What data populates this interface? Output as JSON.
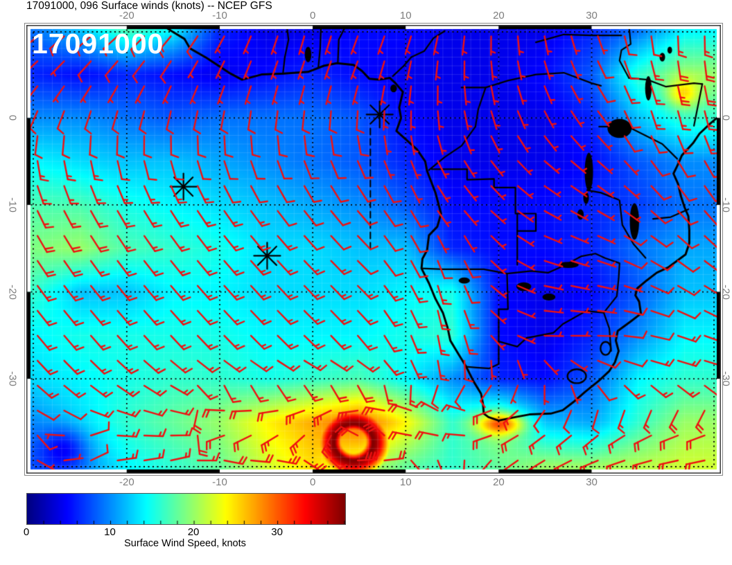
{
  "header": {
    "title": "17091000, 096 Surface winds (knots) -- NCEP GFS"
  },
  "map": {
    "timestamp_label": "17091000"
  },
  "axes": {
    "lon_tick_values": [
      -20,
      -10,
      0,
      10,
      20,
      30
    ],
    "lon_tick_labels": [
      "-20",
      "-10",
      "0",
      "10",
      "20",
      "30"
    ],
    "lat_tick_values": [
      0,
      -10,
      -20,
      -30
    ],
    "lat_tick_labels": [
      "0",
      "-10",
      "-20",
      "-30"
    ],
    "lon_range": [
      -30.8,
      43.9
    ],
    "lat_range": [
      10.7,
      -40.9
    ]
  },
  "colorbar": {
    "label": "Surface Wind Speed, knots",
    "tick_values": [
      0,
      10,
      20,
      30
    ],
    "tick_labels": [
      "0",
      "10",
      "20",
      "30"
    ],
    "min": 0,
    "max": 38,
    "colormap": "jet"
  },
  "chart_data": {
    "type": "heatmap",
    "title": "17091000, 096 Surface winds (knots) -- NCEP GFS",
    "valid_time": "17091000",
    "forecast_hour": "096",
    "model": "NCEP GFS",
    "variable": "Surface winds",
    "units": "knots",
    "lon_range": [
      -30.8,
      43.9
    ],
    "lat_range": [
      10.7,
      -40.9
    ],
    "speed_range": [
      0,
      38
    ],
    "grid": {
      "lons": [
        -30,
        -25,
        -20,
        -15,
        -10,
        -5,
        0,
        5,
        10,
        15,
        20,
        25,
        30,
        35,
        40
      ],
      "lats": [
        10,
        5,
        0,
        -5,
        -10,
        -15,
        -20,
        -25,
        -30,
        -35,
        -40
      ],
      "speed": [
        [
          9,
          12,
          17,
          14,
          6,
          4,
          4,
          5,
          5,
          4,
          4,
          4,
          6,
          9,
          14
        ],
        [
          6,
          5,
          6,
          5,
          4,
          5,
          6,
          5,
          4,
          4,
          4,
          5,
          8,
          16,
          20
        ],
        [
          10,
          10,
          9,
          8,
          9,
          9,
          9,
          8,
          5,
          4,
          4,
          4,
          6,
          12,
          16
        ],
        [
          14,
          13,
          12,
          12,
          11,
          10,
          9,
          8,
          6,
          4,
          4,
          4,
          5,
          8,
          10
        ],
        [
          17,
          17,
          15,
          14,
          13,
          12,
          11,
          10,
          8,
          5,
          5,
          5,
          6,
          7,
          9
        ],
        [
          19,
          20,
          17,
          16,
          15,
          13,
          13,
          12,
          12,
          6,
          5,
          5,
          6,
          9,
          11
        ],
        [
          16,
          12,
          12,
          14,
          14,
          13,
          13,
          13,
          14,
          15,
          5,
          4,
          5,
          8,
          12
        ],
        [
          14,
          15,
          15,
          15,
          15,
          14,
          14,
          14,
          15,
          16,
          5,
          4,
          6,
          10,
          14
        ],
        [
          13,
          14,
          15,
          16,
          16,
          15,
          16,
          17,
          14,
          10,
          6,
          5,
          8,
          14,
          16
        ],
        [
          10,
          13,
          16,
          18,
          20,
          24,
          27,
          30,
          24,
          16,
          20,
          12,
          11,
          16,
          20
        ],
        [
          8,
          10,
          14,
          16,
          18,
          22,
          25,
          22,
          18,
          16,
          18,
          20,
          20,
          21,
          22
        ]
      ],
      "dir_from": [
        [
          230,
          230,
          230,
          220,
          210,
          200,
          195,
          200,
          200,
          190,
          180,
          170,
          160,
          170,
          180
        ],
        [
          225,
          220,
          215,
          210,
          205,
          200,
          200,
          200,
          190,
          180,
          170,
          160,
          150,
          160,
          170
        ],
        [
          200,
          195,
          192,
          190,
          188,
          185,
          183,
          180,
          180,
          170,
          160,
          150,
          140,
          160,
          165
        ],
        [
          170,
          168,
          166,
          164,
          162,
          160,
          158,
          156,
          160,
          150,
          140,
          130,
          130,
          140,
          150
        ],
        [
          155,
          152,
          150,
          148,
          146,
          144,
          142,
          140,
          150,
          140,
          130,
          120,
          120,
          130,
          140
        ],
        [
          148,
          146,
          144,
          142,
          140,
          138,
          136,
          135,
          150,
          160,
          130,
          110,
          110,
          120,
          130
        ],
        [
          143,
          141,
          140,
          139,
          138,
          137,
          136,
          135,
          150,
          170,
          120,
          100,
          100,
          110,
          120
        ],
        [
          140,
          139,
          138,
          137,
          136,
          135,
          134,
          140,
          155,
          175,
          130,
          90,
          90,
          100,
          110
        ],
        [
          135,
          132,
          128,
          124,
          120,
          115,
          110,
          115,
          150,
          180,
          210,
          170,
          130,
          110,
          105
        ],
        [
          110,
          105,
          100,
          95,
          330,
          320,
          310,
          290,
          330,
          350,
          250,
          230,
          220,
          235,
          245
        ],
        [
          90,
          85,
          80,
          75,
          70,
          60,
          90,
          110,
          120,
          140,
          230,
          240,
          250,
          255,
          260
        ]
      ]
    },
    "features": {
      "storm": {
        "lon": 4.4,
        "lat": -37.3,
        "peak_knots": 38,
        "eye_knots": 6,
        "ring_radius_deg": 2.0,
        "ring_width_deg": 2.6,
        "influence_deg": 4.8
      },
      "weak_low": {
        "lon": -26.9,
        "lat": -38.2,
        "damp": 0.55,
        "radius_deg": 2.5,
        "influence_deg": 3.2
      },
      "bumps": [
        {
          "lon": 20.2,
          "lat": -35.2,
          "amp": 11,
          "sx": 2.4,
          "sy": 1.2
        },
        {
          "lon": 39.8,
          "lat": 2.8,
          "amp": 7,
          "sx": 1.8,
          "sy": 1.6
        }
      ]
    },
    "markers": [
      {
        "lon": 7.2,
        "lat": 0.4
      },
      {
        "lon": -13.9,
        "lat": -7.9
      },
      {
        "lon": -4.9,
        "lat": -15.85
      }
    ],
    "track": {
      "lon": 6.2,
      "lat_from": -1.2,
      "lat_to": -15.3,
      "style": "dashed"
    },
    "coastline": [
      [
        -16.2,
        10.7
      ],
      [
        -15.2,
        10.0
      ],
      [
        -13.8,
        9.1
      ],
      [
        -13.2,
        8.0
      ],
      [
        -11.4,
        6.9
      ],
      [
        -9.0,
        5.2
      ],
      [
        -7.6,
        4.4
      ],
      [
        -5.5,
        5.0
      ],
      [
        -3.1,
        5.1
      ],
      [
        -0.5,
        5.3
      ],
      [
        1.2,
        6.0
      ],
      [
        2.6,
        6.3
      ],
      [
        4.4,
        6.1
      ],
      [
        5.3,
        5.4
      ],
      [
        6.1,
        4.5
      ],
      [
        7.1,
        4.4
      ],
      [
        8.3,
        4.6
      ],
      [
        8.9,
        4.0
      ],
      [
        9.7,
        3.0
      ],
      [
        9.3,
        1.2
      ],
      [
        9.5,
        0.0
      ],
      [
        9.0,
        -1.5
      ],
      [
        11.2,
        -3.6
      ],
      [
        12.1,
        -5.0
      ],
      [
        12.3,
        -6.1
      ],
      [
        13.2,
        -8.6
      ],
      [
        13.8,
        -11.0
      ],
      [
        13.4,
        -12.5
      ],
      [
        12.5,
        -13.5
      ],
      [
        12.3,
        -15.2
      ],
      [
        11.8,
        -16.2
      ],
      [
        11.7,
        -17.3
      ],
      [
        12.5,
        -19.0
      ],
      [
        13.2,
        -20.8
      ],
      [
        14.0,
        -22.4
      ],
      [
        14.5,
        -24.1
      ],
      [
        14.8,
        -25.6
      ],
      [
        15.7,
        -27.2
      ],
      [
        16.5,
        -28.6
      ],
      [
        17.3,
        -30.3
      ],
      [
        18.1,
        -31.7
      ],
      [
        18.3,
        -32.8
      ],
      [
        18.4,
        -34.0
      ],
      [
        18.9,
        -34.4
      ],
      [
        20.0,
        -34.8
      ],
      [
        21.8,
        -34.4
      ],
      [
        23.3,
        -34.1
      ],
      [
        25.6,
        -34.0
      ],
      [
        26.9,
        -33.6
      ],
      [
        28.0,
        -32.7
      ],
      [
        29.3,
        -31.5
      ],
      [
        30.8,
        -30.2
      ],
      [
        31.9,
        -29.1
      ],
      [
        32.5,
        -28.1
      ],
      [
        32.9,
        -26.8
      ],
      [
        32.6,
        -25.6
      ],
      [
        32.8,
        -24.5
      ],
      [
        34.2,
        -23.4
      ],
      [
        35.3,
        -22.5
      ],
      [
        35.1,
        -21.1
      ],
      [
        34.7,
        -20.4
      ],
      [
        34.9,
        -19.6
      ],
      [
        35.9,
        -18.7
      ],
      [
        37.0,
        -17.8
      ],
      [
        38.2,
        -17.2
      ],
      [
        39.1,
        -16.5
      ],
      [
        40.1,
        -15.7
      ],
      [
        40.5,
        -14.4
      ],
      [
        40.5,
        -12.9
      ],
      [
        40.4,
        -11.3
      ],
      [
        40.0,
        -10.3
      ],
      [
        39.6,
        -9.0
      ],
      [
        39.3,
        -7.6
      ],
      [
        38.8,
        -6.4
      ],
      [
        39.3,
        -5.3
      ],
      [
        39.7,
        -4.3
      ],
      [
        40.9,
        -2.9
      ],
      [
        41.6,
        -1.8
      ],
      [
        42.8,
        -0.6
      ],
      [
        43.9,
        0.4
      ]
    ],
    "coast_segments": [
      [
        [
          42.6,
          10.7
        ],
        [
          43.9,
          10.2
        ]
      ]
    ],
    "islands": [
      {
        "lon": 8.7,
        "lat": 3.4,
        "rx": 0.35,
        "ry": 0.45
      }
    ],
    "borders": [
      [
        [
          11.7,
          -17.3
        ],
        [
          14.0,
          -17.4
        ],
        [
          18.4,
          -17.4
        ],
        [
          20.9,
          -17.9
        ],
        [
          23.5,
          -17.6
        ],
        [
          25.3,
          -17.8
        ]
      ],
      [
        [
          20.9,
          -17.9
        ],
        [
          21.0,
          -22.0
        ],
        [
          20.0,
          -22.0
        ],
        [
          20.0,
          -28.3
        ]
      ],
      [
        [
          20.0,
          -28.3
        ],
        [
          19.0,
          -28.8
        ],
        [
          17.6,
          -28.7
        ],
        [
          16.5,
          -28.6
        ]
      ],
      [
        [
          20.0,
          -25.7
        ],
        [
          22.0,
          -26.3
        ],
        [
          23.0,
          -25.3
        ],
        [
          25.9,
          -24.7
        ],
        [
          26.9,
          -23.7
        ],
        [
          27.9,
          -23.1
        ],
        [
          29.4,
          -22.2
        ],
        [
          31.3,
          -22.4
        ]
      ],
      [
        [
          31.3,
          -22.4
        ],
        [
          31.9,
          -24.2
        ],
        [
          32.0,
          -25.6
        ],
        [
          32.1,
          -26.8
        ]
      ],
      [
        [
          25.3,
          -17.8
        ],
        [
          27.0,
          -17.0
        ],
        [
          28.9,
          -15.9
        ],
        [
          30.4,
          -15.6
        ],
        [
          31.4,
          -16.1
        ],
        [
          33.0,
          -16.7
        ],
        [
          32.9,
          -18.5
        ],
        [
          32.7,
          -20.5
        ],
        [
          31.3,
          -22.4
        ]
      ],
      [
        [
          22.0,
          -11.0
        ],
        [
          22.0,
          -13.0
        ],
        [
          22.0,
          -16.9
        ]
      ],
      [
        [
          12.8,
          -5.9
        ],
        [
          16.6,
          -5.9
        ],
        [
          16.6,
          -7.1
        ],
        [
          19.5,
          -7.0
        ],
        [
          19.5,
          -8.0
        ],
        [
          21.8,
          -8.0
        ],
        [
          21.8,
          -11.0
        ],
        [
          24.0,
          -11.0
        ],
        [
          24.0,
          -13.0
        ],
        [
          22.0,
          -13.0
        ]
      ],
      [
        [
          12.5,
          -6.0
        ],
        [
          14.2,
          -4.5
        ],
        [
          16.0,
          -3.2
        ],
        [
          17.5,
          -1.0
        ],
        [
          17.8,
          1.0
        ],
        [
          18.6,
          3.5
        ]
      ],
      [
        [
          8.6,
          4.8
        ],
        [
          9.8,
          6.0
        ],
        [
          10.6,
          7.0
        ],
        [
          12.0,
          7.7
        ],
        [
          13.0,
          9.2
        ],
        [
          14.2,
          10.0
        ]
      ],
      [
        [
          16.0,
          3.5
        ],
        [
          18.6,
          3.5
        ],
        [
          21.0,
          4.3
        ],
        [
          24.0,
          5.0
        ],
        [
          27.0,
          5.2
        ],
        [
          30.0,
          4.0
        ],
        [
          31.0,
          3.7
        ]
      ],
      [
        [
          30.8,
          -1.0
        ],
        [
          33.9,
          -1.0
        ],
        [
          37.6,
          -3.0
        ],
        [
          39.2,
          -4.7
        ]
      ],
      [
        [
          40.4,
          -10.5
        ],
        [
          38.5,
          -11.4
        ],
        [
          36.6,
          -11.6
        ]
      ],
      [
        [
          34.0,
          4.6
        ],
        [
          36.0,
          4.4
        ],
        [
          38.0,
          3.6
        ],
        [
          41.0,
          4.0
        ],
        [
          41.9,
          3.9
        ]
      ],
      [
        [
          34.0,
          10.7
        ],
        [
          34.2,
          8.5
        ],
        [
          33.2,
          7.8
        ],
        [
          33.0,
          6.6
        ],
        [
          34.0,
          4.6
        ]
      ],
      [
        [
          24.0,
          8.7
        ],
        [
          27.0,
          9.6
        ],
        [
          30.0,
          9.5
        ],
        [
          33.2,
          9.5
        ]
      ],
      [
        [
          -3.2,
          5.1
        ],
        [
          -3.0,
          7.0
        ],
        [
          -2.6,
          9.0
        ],
        [
          -2.8,
          10.7
        ]
      ],
      [
        [
          0.6,
          5.8
        ],
        [
          0.8,
          8.0
        ],
        [
          0.9,
          10.7
        ]
      ],
      [
        [
          2.7,
          6.3
        ],
        [
          2.8,
          9.0
        ],
        [
          3.6,
          10.7
        ]
      ],
      [
        [
          41.9,
          3.9
        ],
        [
          41.0,
          -0.9
        ]
      ],
      [
        [
          33.0,
          -9.5
        ],
        [
          33.3,
          -12.3
        ],
        [
          34.5,
          -14.5
        ],
        [
          35.8,
          -16.1
        ]
      ],
      [
        [
          29.5,
          -8.3
        ],
        [
          31.0,
          -8.6
        ],
        [
          32.9,
          -9.4
        ]
      ]
    ],
    "enclaves": [
      {
        "lon": 28.4,
        "lat": -29.7,
        "rx": 1.0,
        "ry": 0.8
      },
      {
        "lon": 31.5,
        "lat": -26.5,
        "rx": 0.55,
        "ry": 0.75
      }
    ],
    "lakes": [
      {
        "lon": 33.0,
        "lat": -1.2,
        "rx": 1.3,
        "ry": 1.1
      },
      {
        "lon": 29.7,
        "lat": -6.2,
        "rx": 0.45,
        "ry": 2.2
      },
      {
        "lon": 34.6,
        "lat": -11.9,
        "rx": 0.5,
        "ry": 2.1
      },
      {
        "lon": 36.1,
        "lat": 3.4,
        "rx": 0.35,
        "ry": 1.4
      },
      {
        "lon": 29.4,
        "lat": -9.2,
        "rx": 0.3,
        "ry": 0.7
      },
      {
        "lon": 28.8,
        "lat": -11.1,
        "rx": 0.35,
        "ry": 0.6
      },
      {
        "lon": 27.5,
        "lat": -16.9,
        "rx": 1.1,
        "ry": 0.35
      },
      {
        "lon": 37.6,
        "lat": 7.0,
        "rx": 0.3,
        "ry": 0.5
      },
      {
        "lon": 38.4,
        "lat": 7.8,
        "rx": 0.25,
        "ry": 0.4
      },
      {
        "lon": -0.5,
        "lat": 7.3,
        "rx": 0.35,
        "ry": 0.9
      },
      {
        "lon": 22.7,
        "lat": -19.4,
        "rx": 0.8,
        "ry": 0.5
      },
      {
        "lon": 25.4,
        "lat": -20.6,
        "rx": 0.7,
        "ry": 0.4
      },
      {
        "lon": 16.3,
        "lat": -18.7,
        "rx": 0.6,
        "ry": 0.35
      }
    ],
    "barb_color": "#ee1111",
    "barb_grid_step_deg": 2.87
  }
}
